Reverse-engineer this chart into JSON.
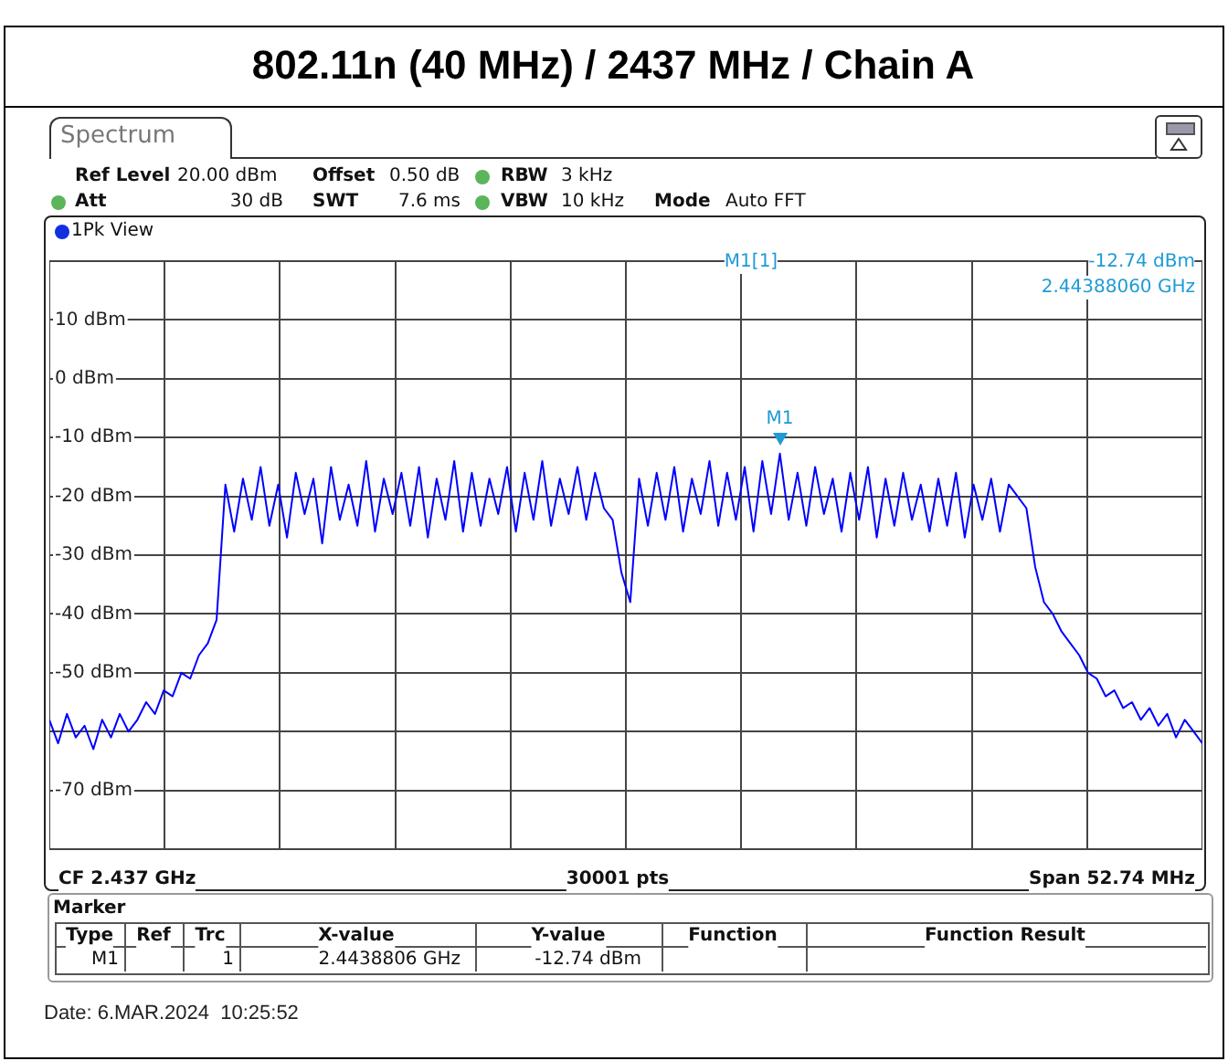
{
  "chart_data": {
    "type": "line",
    "title": "802.11n (40 MHz) / 2437 MHz / Chain A",
    "categories": [
      null,
      null,
      null,
      null,
      null,
      null,
      null,
      null,
      null,
      null,
      null,
      null,
      null,
      null,
      null,
      null,
      null,
      null,
      null,
      null,
      null,
      null,
      null,
      null,
      null,
      null,
      null,
      null,
      null,
      null,
      null,
      null,
      null,
      null,
      null,
      null,
      null,
      null,
      null,
      null,
      null,
      null,
      null,
      null,
      null,
      null,
      null,
      null,
      null,
      null,
      null,
      null,
      null,
      null,
      null,
      null,
      null,
      null,
      null,
      null,
      null,
      null,
      null,
      null,
      null,
      null,
      null,
      null,
      null,
      null,
      null,
      null,
      null,
      null,
      null,
      null,
      null,
      null,
      null,
      null,
      null,
      null,
      null,
      null,
      null,
      null,
      null,
      null,
      null,
      null,
      null,
      null,
      null,
      null,
      null,
      null,
      null,
      null,
      null,
      null,
      null,
      null,
      null,
      null,
      null,
      null,
      null,
      null,
      null,
      null,
      null,
      null,
      null,
      null,
      null,
      null,
      null,
      null,
      null,
      null,
      null,
      null,
      null,
      null,
      null,
      null,
      null,
      null,
      null,
      null,
      null,
      null
    ],
    "series": [
      {
        "color": "#0000ff",
        "values": [
          -58,
          -62,
          -57,
          -61,
          -59,
          -63,
          -58,
          -61,
          -57,
          -60,
          -58,
          -55,
          -57,
          -53,
          -54,
          -50,
          -51,
          -47,
          -45,
          -41,
          -18,
          -26,
          -17,
          -24,
          -15,
          -25,
          -18,
          -27,
          -16,
          -23,
          -17,
          -28,
          -15,
          -24,
          -18,
          -25,
          -14,
          -26,
          -17,
          -23,
          -16,
          -25,
          -15,
          -27,
          -17,
          -24,
          -14,
          -26,
          -16,
          -25,
          -17,
          -23,
          -15,
          -26,
          -16,
          -24,
          -14,
          -25,
          -17,
          -23,
          -15,
          -24,
          -16,
          -22,
          -24,
          -33,
          -38,
          -17,
          -25,
          -16,
          -24,
          -15,
          -26,
          -17,
          -23,
          -14,
          -25,
          -16,
          -24,
          -15,
          -26,
          -14,
          -23,
          -12.74,
          -24,
          -16,
          -25,
          -15,
          -23,
          -17,
          -26,
          -16,
          -24,
          -15,
          -27,
          -17,
          -25,
          -16,
          -24,
          -18,
          -26,
          -17,
          -25,
          -16,
          -27,
          -18,
          -24,
          -17,
          -26,
          -18,
          -20,
          -22,
          -32,
          -38,
          -40,
          -43,
          -45,
          -47,
          -50,
          -51,
          -54,
          -53,
          -56,
          -55,
          -58,
          -56,
          -59,
          -57,
          -61,
          -58,
          -60,
          -62
        ]
      }
    ],
    "ylim": [
      -80,
      20
    ],
    "yticks": [
      {
        "value": -70,
        "label": "-70 dBm"
      },
      {
        "value": -60,
        "label": null
      },
      {
        "value": -50,
        "label": "-50 dBm"
      },
      {
        "value": -40,
        "label": "-40 dBm"
      },
      {
        "value": -30,
        "label": "-30 dBm"
      },
      {
        "value": -20,
        "label": "-20 dBm"
      },
      {
        "value": -10,
        "label": "-10 dBm"
      },
      {
        "value": 0,
        "label": "0 dBm"
      },
      {
        "value": 10,
        "label": "10 dBm"
      },
      {
        "value": 20,
        "label": null
      }
    ],
    "grid": true,
    "legend": false,
    "tick_labels": "y",
    "line_style": "solid",
    "annotations": [
      "Spectrum",
      "Ref Level",
      "20.00 dBm",
      "Offset",
      "0.50 dB",
      "RBW",
      "3 kHz",
      "Att",
      "30 dB",
      "SWT",
      "7.6 ms",
      "VBW",
      "10 kHz",
      "Mode",
      "Auto FFT",
      "1Pk View",
      "M1[1]",
      "-12.74 dBm",
      "2.44388060 GHz",
      "CF 2.437 GHz",
      "30001 pts",
      "Span 52.74 MHz",
      "Marker",
      "Type",
      "Ref",
      "Trc",
      "X-value",
      "Y-value",
      "Function",
      "Function Result",
      "M1",
      "1",
      "2.4438806 GHz",
      "-12.74 dBm",
      "Date: 6.MAR.2024  10:25:52",
      {
        "text": "M1",
        "y": -12.74
      }
    ]
  }
}
